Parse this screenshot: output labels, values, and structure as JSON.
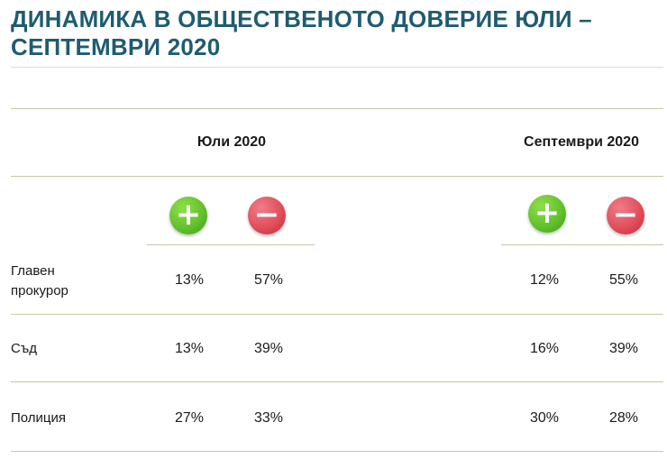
{
  "title": {
    "line1": "ДИНАМИКА В ОБЩЕСТВЕНОТО ДОВЕРИЕ ЮЛИ –",
    "line2": "СЕПТЕМВРИ 2020"
  },
  "periods": [
    {
      "label": "Юли 2020"
    },
    {
      "label": "Септември 2020"
    }
  ],
  "icons": {
    "positive": {
      "name": "plus-icon",
      "symbol": "+",
      "color": "#5fbf2a"
    },
    "negative": {
      "name": "minus-icon",
      "symbol": "−",
      "color": "#e04a58"
    }
  },
  "rows": [
    {
      "label_line1": "Главен",
      "label_line2": "прокурор",
      "jul_pos": "13%",
      "jul_neg": "57%",
      "sep_pos": "12%",
      "sep_neg": "55%"
    },
    {
      "label_line1": "Съд",
      "label_line2": "",
      "jul_pos": "13%",
      "jul_neg": "39%",
      "sep_pos": "16%",
      "sep_neg": "39%"
    },
    {
      "label_line1": "Полиция",
      "label_line2": "",
      "jul_pos": "27%",
      "jul_neg": "33%",
      "sep_pos": "30%",
      "sep_neg": "28%"
    }
  ]
}
